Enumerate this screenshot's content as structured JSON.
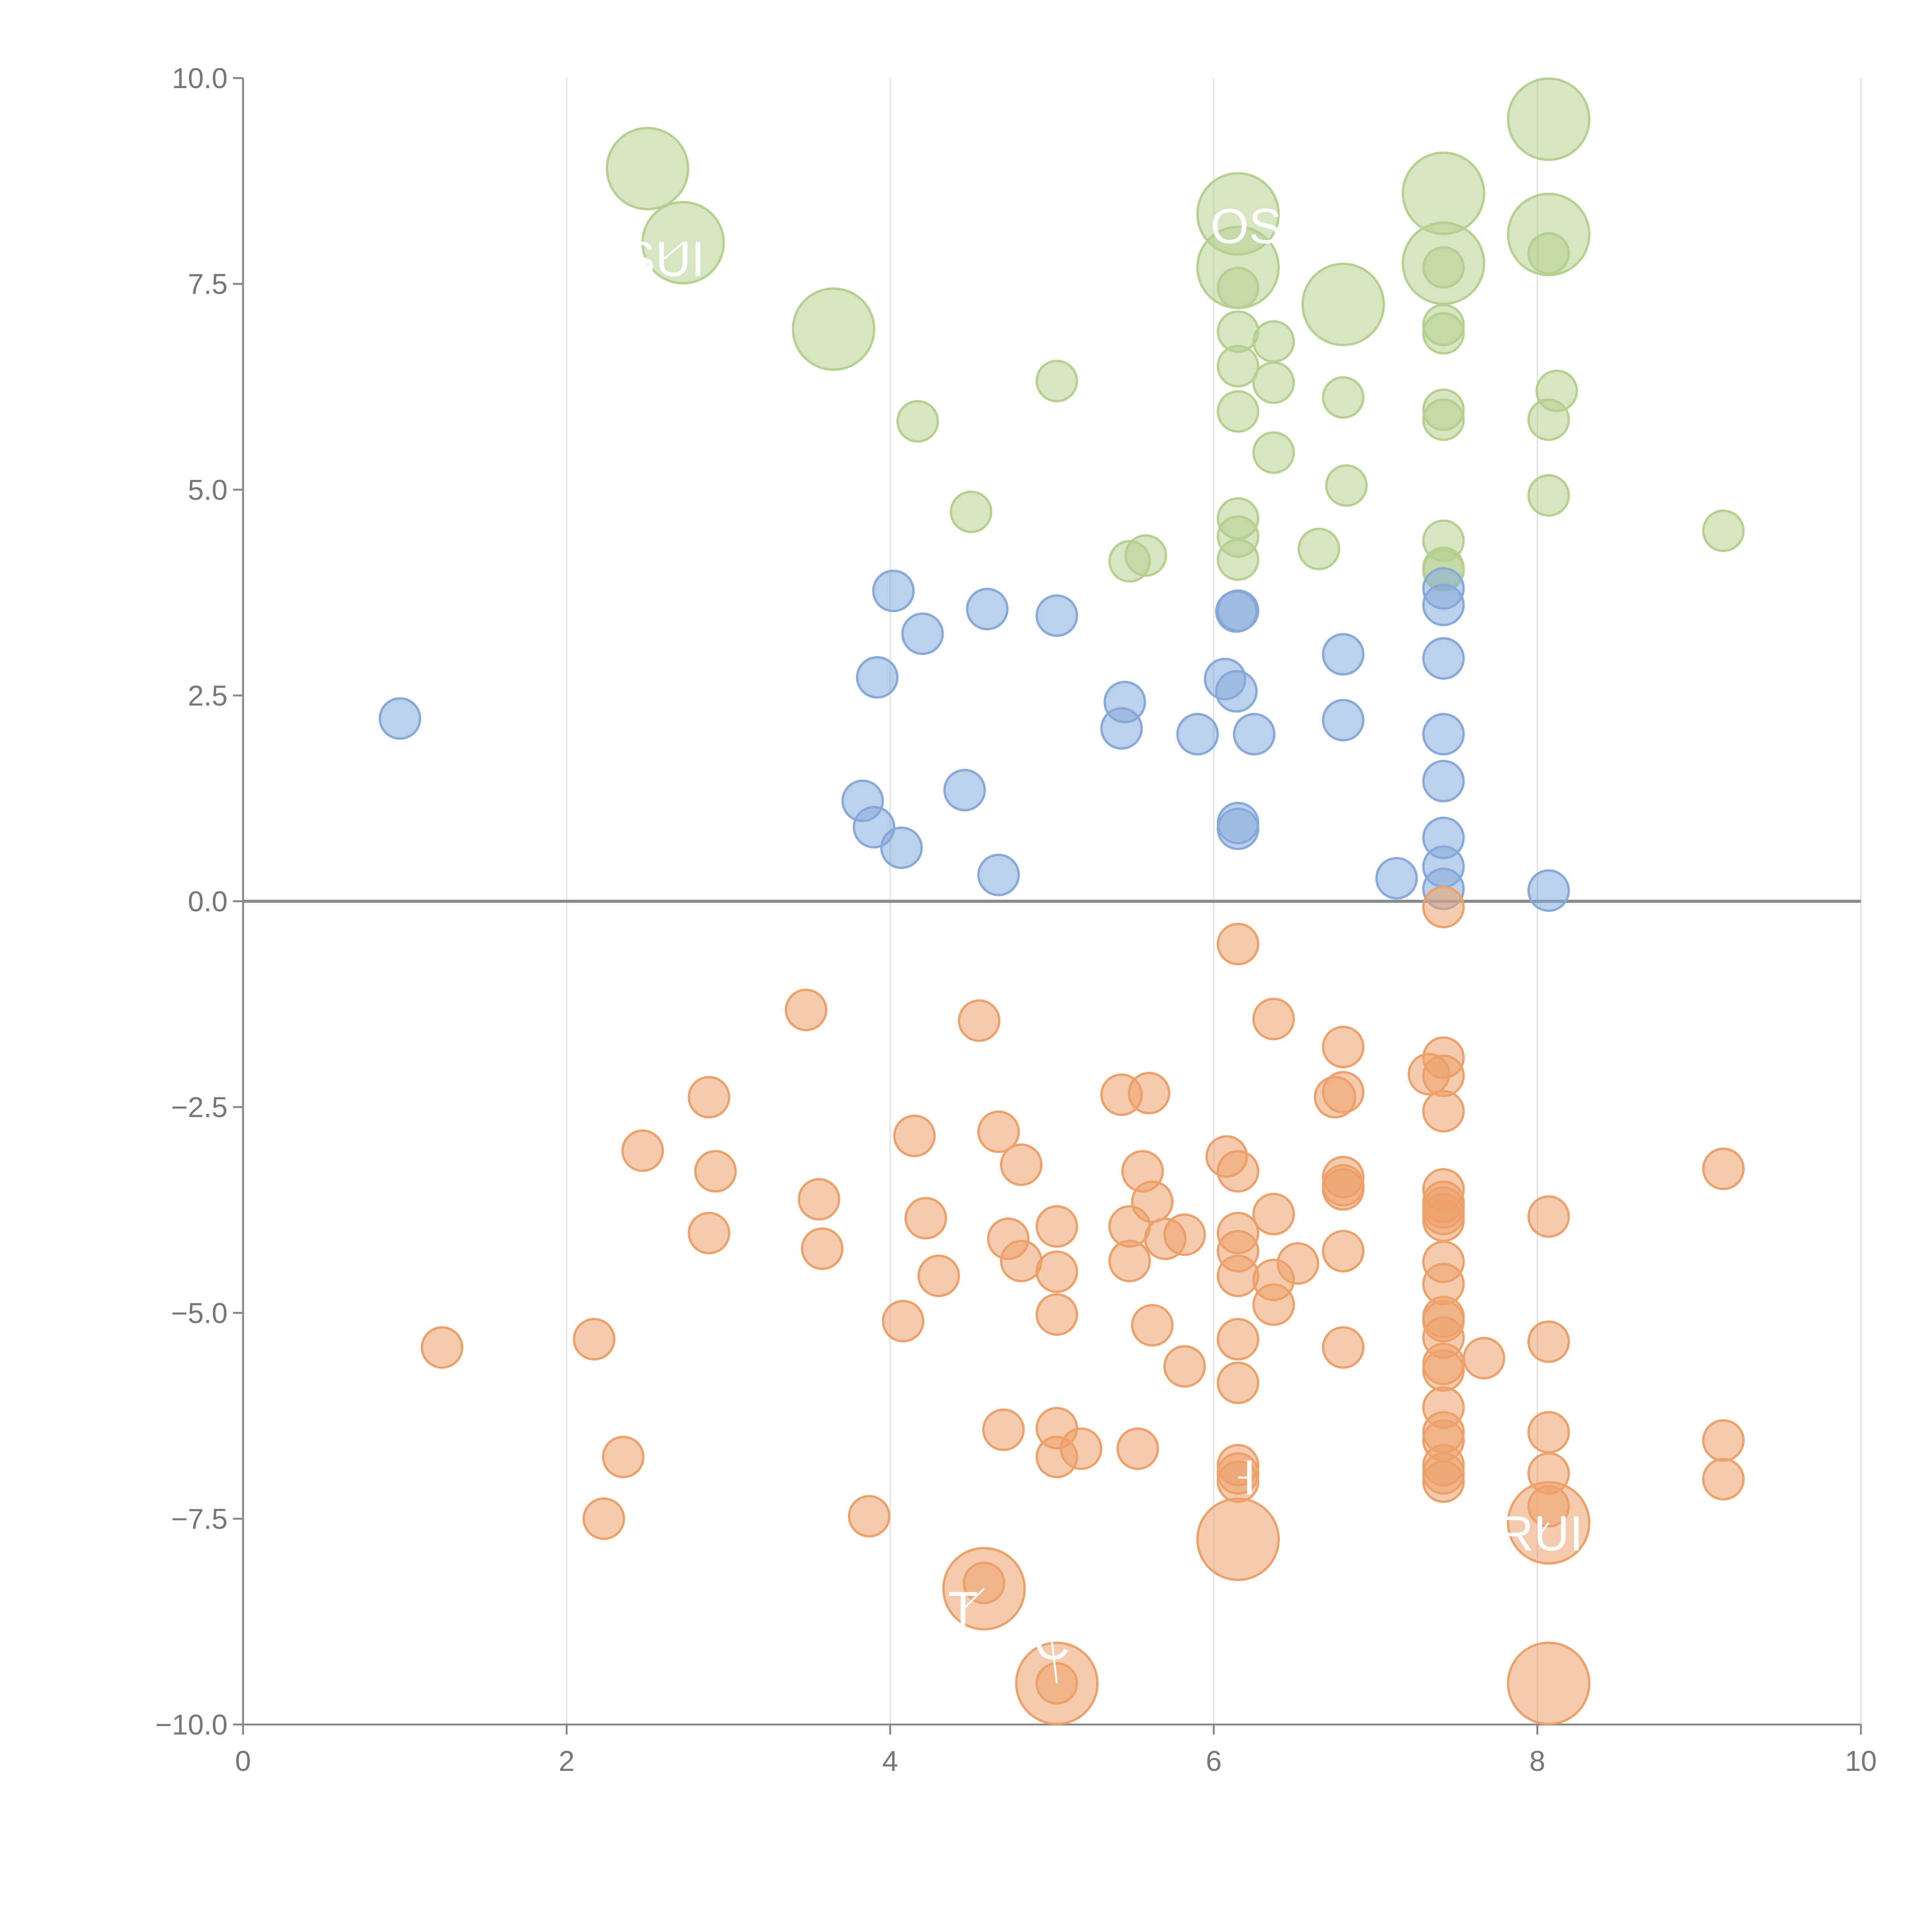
{
  "chart_data": {
    "type": "scatter",
    "xlim": [
      0,
      10
    ],
    "ylim": [
      -10,
      10
    ],
    "x_ticks": [
      "0",
      "2",
      "4",
      "6",
      "8",
      "10"
    ],
    "y_ticks": [
      "10.0",
      "7.5",
      "5.0",
      "2.5",
      "0.0",
      "−2.5",
      "−5.0",
      "−7.5",
      "−10.0"
    ],
    "grid": "vertical lines at x ticks",
    "zero_line": true,
    "colors": {
      "green": "#b5d08f",
      "blue": "#86a9d9",
      "orange": "#eda16a",
      "axis": "#888888",
      "grid": "#dddddd",
      "label": "#ffffff"
    },
    "series": [
      {
        "color_key": "green",
        "points": [
          [
            2.5,
            8.9,
            2
          ],
          [
            2.72,
            8.0,
            2
          ],
          [
            3.65,
            6.95,
            2
          ],
          [
            6.15,
            8.35,
            2
          ],
          [
            6.15,
            7.7,
            2
          ],
          [
            6.8,
            7.25,
            2
          ],
          [
            7.42,
            8.6,
            2
          ],
          [
            7.42,
            7.75,
            2
          ],
          [
            8.07,
            9.5,
            2
          ],
          [
            8.07,
            8.1,
            2
          ],
          [
            6.15,
            7.45,
            1
          ],
          [
            6.15,
            6.92,
            1
          ],
          [
            6.15,
            6.5,
            1
          ],
          [
            6.15,
            5.95,
            1
          ],
          [
            6.15,
            4.65,
            1
          ],
          [
            6.15,
            4.43,
            1
          ],
          [
            6.15,
            4.15,
            1
          ],
          [
            6.37,
            6.8,
            1
          ],
          [
            6.37,
            6.3,
            1
          ],
          [
            6.37,
            5.45,
            1
          ],
          [
            6.8,
            6.12,
            1
          ],
          [
            6.82,
            5.05,
            1
          ],
          [
            6.65,
            4.28,
            1
          ],
          [
            7.42,
            7.7,
            1
          ],
          [
            7.42,
            7.0,
            1
          ],
          [
            7.42,
            6.9,
            1
          ],
          [
            7.42,
            5.97,
            1
          ],
          [
            7.42,
            5.85,
            1
          ],
          [
            7.42,
            4.38,
            1
          ],
          [
            7.42,
            4.05,
            1
          ],
          [
            7.42,
            4.02,
            1
          ],
          [
            8.07,
            7.87,
            1
          ],
          [
            8.12,
            6.2,
            1
          ],
          [
            8.07,
            5.85,
            1
          ],
          [
            8.07,
            4.93,
            1
          ],
          [
            9.15,
            4.5,
            1
          ],
          [
            4.17,
            5.83,
            1
          ],
          [
            5.03,
            6.32,
            1
          ],
          [
            4.5,
            4.73,
            1
          ],
          [
            5.48,
            4.13,
            1
          ],
          [
            5.58,
            4.2,
            1
          ]
        ]
      },
      {
        "color_key": "blue",
        "points": [
          [
            0.97,
            2.22,
            1
          ],
          [
            4.02,
            3.77,
            1
          ],
          [
            3.92,
            2.72,
            1
          ],
          [
            4.2,
            3.25,
            1
          ],
          [
            4.6,
            3.55,
            1
          ],
          [
            5.03,
            3.47,
            1
          ],
          [
            3.83,
            1.22,
            1
          ],
          [
            3.9,
            0.9,
            1
          ],
          [
            4.07,
            0.65,
            1
          ],
          [
            4.67,
            0.32,
            1
          ],
          [
            4.46,
            1.35,
            1
          ],
          [
            5.45,
            2.42,
            1
          ],
          [
            5.43,
            2.1,
            1
          ],
          [
            5.9,
            2.03,
            1
          ],
          [
            6.07,
            2.7,
            1
          ],
          [
            6.14,
            2.55,
            1
          ],
          [
            6.25,
            2.03,
            1
          ],
          [
            6.15,
            3.53,
            1
          ],
          [
            6.14,
            3.52,
            1
          ],
          [
            6.15,
            0.95,
            1
          ],
          [
            6.15,
            0.88,
            1
          ],
          [
            6.8,
            3.0,
            1
          ],
          [
            6.8,
            2.2,
            1
          ],
          [
            7.13,
            0.28,
            1
          ],
          [
            7.42,
            3.8,
            1
          ],
          [
            7.42,
            3.6,
            1
          ],
          [
            7.42,
            2.95,
            1
          ],
          [
            7.42,
            2.03,
            1
          ],
          [
            7.42,
            1.46,
            1
          ],
          [
            7.42,
            0.77,
            1
          ],
          [
            7.42,
            0.42,
            1
          ],
          [
            7.42,
            0.15,
            1
          ],
          [
            8.07,
            0.13,
            1
          ]
        ]
      },
      {
        "color_key": "orange",
        "points": [
          [
            4.58,
            -8.35,
            2
          ],
          [
            5.03,
            -9.5,
            2
          ],
          [
            6.15,
            -7.75,
            2
          ],
          [
            8.07,
            -7.55,
            2
          ],
          [
            8.07,
            -9.5,
            2
          ],
          [
            1.23,
            -5.42,
            1
          ],
          [
            2.17,
            -5.32,
            1
          ],
          [
            2.35,
            -6.75,
            1
          ],
          [
            2.23,
            -7.5,
            1
          ],
          [
            2.47,
            -3.03,
            1
          ],
          [
            2.88,
            -2.38,
            1
          ],
          [
            2.92,
            -3.28,
            1
          ],
          [
            2.88,
            -4.03,
            1
          ],
          [
            3.48,
            -1.32,
            1
          ],
          [
            3.56,
            -3.62,
            1
          ],
          [
            3.58,
            -4.22,
            1
          ],
          [
            3.87,
            -7.47,
            1
          ],
          [
            4.08,
            -5.1,
            1
          ],
          [
            4.15,
            -2.85,
            1
          ],
          [
            4.22,
            -3.85,
            1
          ],
          [
            4.3,
            -4.55,
            1
          ],
          [
            4.55,
            -1.45,
            1
          ],
          [
            4.67,
            -2.8,
            1
          ],
          [
            4.73,
            -4.1,
            1
          ],
          [
            4.81,
            -3.2,
            1
          ],
          [
            4.81,
            -4.37,
            1
          ],
          [
            4.7,
            -6.42,
            1
          ],
          [
            5.03,
            -3.95,
            1
          ],
          [
            5.03,
            -4.5,
            1
          ],
          [
            5.03,
            -5.02,
            1
          ],
          [
            5.03,
            -6.4,
            1
          ],
          [
            5.03,
            -6.75,
            1
          ],
          [
            5.18,
            -6.65,
            1
          ],
          [
            4.58,
            -8.28,
            1
          ],
          [
            5.03,
            -9.5,
            1
          ],
          [
            5.43,
            -2.35,
            1
          ],
          [
            5.6,
            -2.33,
            1
          ],
          [
            5.56,
            -3.28,
            1
          ],
          [
            5.62,
            -3.65,
            1
          ],
          [
            5.48,
            -3.95,
            1
          ],
          [
            5.48,
            -4.37,
            1
          ],
          [
            5.7,
            -4.1,
            1
          ],
          [
            5.82,
            -4.05,
            1
          ],
          [
            5.62,
            -5.15,
            1
          ],
          [
            5.82,
            -5.65,
            1
          ],
          [
            5.53,
            -6.65,
            1
          ],
          [
            6.15,
            -0.52,
            1
          ],
          [
            6.08,
            -3.1,
            1
          ],
          [
            6.15,
            -3.28,
            1
          ],
          [
            6.15,
            -4.03,
            1
          ],
          [
            6.15,
            -4.25,
            1
          ],
          [
            6.15,
            -4.55,
            1
          ],
          [
            6.15,
            -5.32,
            1
          ],
          [
            6.15,
            -5.85,
            1
          ],
          [
            6.15,
            -6.85,
            1
          ],
          [
            6.15,
            -6.95,
            1
          ],
          [
            6.15,
            -7.05,
            1
          ],
          [
            6.37,
            -1.43,
            1
          ],
          [
            6.37,
            -3.8,
            1
          ],
          [
            6.37,
            -4.6,
            1
          ],
          [
            6.37,
            -4.9,
            1
          ],
          [
            6.52,
            -4.4,
            1
          ],
          [
            6.8,
            -1.77,
            1
          ],
          [
            6.8,
            -2.32,
            1
          ],
          [
            6.75,
            -2.38,
            1
          ],
          [
            6.8,
            -3.35,
            1
          ],
          [
            6.8,
            -3.45,
            1
          ],
          [
            6.8,
            -3.5,
            1
          ],
          [
            6.8,
            -4.25,
            1
          ],
          [
            6.8,
            -5.42,
            1
          ],
          [
            7.42,
            -0.07,
            1
          ],
          [
            7.42,
            -1.9,
            1
          ],
          [
            7.33,
            -2.1,
            1
          ],
          [
            7.42,
            -2.12,
            1
          ],
          [
            7.42,
            -2.55,
            1
          ],
          [
            7.42,
            -3.5,
            1
          ],
          [
            7.42,
            -3.65,
            1
          ],
          [
            7.42,
            -3.72,
            1
          ],
          [
            7.42,
            -3.8,
            1
          ],
          [
            7.42,
            -3.88,
            1
          ],
          [
            7.42,
            -4.38,
            1
          ],
          [
            7.42,
            -4.65,
            1
          ],
          [
            7.42,
            -5.05,
            1
          ],
          [
            7.42,
            -5.1,
            1
          ],
          [
            7.42,
            -5.3,
            1
          ],
          [
            7.42,
            -5.62,
            1
          ],
          [
            7.42,
            -5.7,
            1
          ],
          [
            7.67,
            -5.55,
            1
          ],
          [
            7.42,
            -6.15,
            1
          ],
          [
            7.42,
            -6.45,
            1
          ],
          [
            7.42,
            -6.55,
            1
          ],
          [
            7.42,
            -6.85,
            1
          ],
          [
            7.42,
            -6.95,
            1
          ],
          [
            7.42,
            -7.05,
            1
          ],
          [
            8.07,
            -3.83,
            1
          ],
          [
            8.07,
            -5.35,
            1
          ],
          [
            8.07,
            -6.45,
            1
          ],
          [
            8.07,
            -6.95,
            1
          ],
          [
            8.07,
            -7.35,
            1
          ],
          [
            9.15,
            -3.25,
            1
          ],
          [
            9.15,
            -6.55,
            1
          ],
          [
            9.15,
            -7.02,
            1
          ]
        ]
      }
    ],
    "labels": [
      {
        "text": "SUI",
        "x": 2.6,
        "y": 7.8,
        "px": 2.72,
        "py": 8.0
      },
      {
        "text": "OS",
        "x": 6.2,
        "y": 8.2,
        "px": 6.15,
        "py": 8.35
      },
      {
        "text": "RUI",
        "x": 8.02,
        "y": -7.68,
        "px": 8.07,
        "py": -7.55
      },
      {
        "text": "T",
        "x": 4.45,
        "y": -8.6,
        "px": 4.58,
        "py": -8.35
      },
      {
        "text": "C",
        "x": 5.0,
        "y": -9.0,
        "px": 5.03,
        "py": -9.5
      },
      {
        "text": "I",
        "x": 6.22,
        "y": -7.0,
        "px": 6.15,
        "py": -7.0
      }
    ]
  }
}
